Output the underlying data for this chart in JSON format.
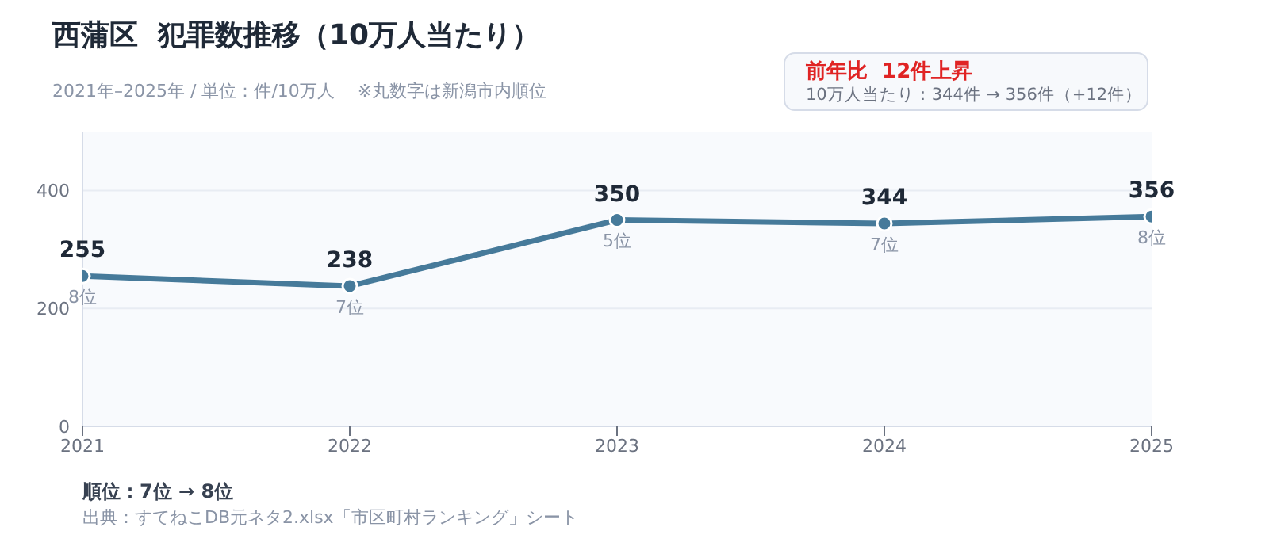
{
  "chart_data": {
    "type": "line",
    "title": "西蒲区  犯罪数推移（10万人当たり）",
    "subtitle": "2021年–2025年 / 単位：件/10万人　 ※丸数字は新潟市内順位",
    "x": [
      2021,
      2022,
      2023,
      2024,
      2025
    ],
    "series": [
      {
        "color": "#467a9a",
        "values": [
          255,
          238,
          350,
          344,
          356
        ]
      }
    ],
    "xlim": [
      2021,
      2025
    ],
    "xticks": [
      2021,
      2022,
      2023,
      2024,
      2025
    ],
    "ylim": [
      0,
      500
    ],
    "yticks": [
      0,
      200,
      400
    ],
    "grid": "y",
    "marker": "circle",
    "line_style": "solid",
    "data_labels": true,
    "annotations": [
      "前年比  12件上昇",
      "10万人当たり：344件 → 356件（+12件）",
      "順位：7位 → 8位",
      "出典：すてねこDB元ネタ2.xlsx「市区町村ランキング」シート",
      {
        "text": "8位",
        "x": 2021,
        "y": 255
      },
      {
        "text": "7位",
        "x": 2022,
        "y": 238
      },
      {
        "text": "5位",
        "x": 2023,
        "y": 350
      },
      {
        "text": "7位",
        "x": 2024,
        "y": 344
      },
      {
        "text": "8位",
        "x": 2025,
        "y": 356
      }
    ]
  }
}
